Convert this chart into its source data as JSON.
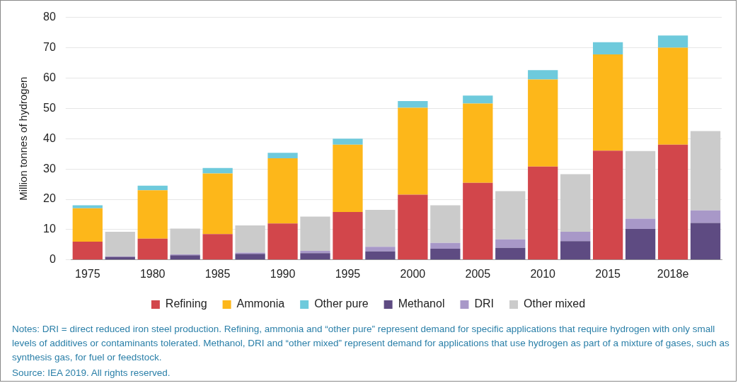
{
  "chart_data": {
    "type": "bar",
    "ylabel": "Million tonnes of hydrogen",
    "categories": [
      "1975",
      null,
      "1980",
      null,
      "1985",
      null,
      "1990",
      null,
      "1995",
      null,
      "2000",
      null,
      "2005",
      null,
      "2010",
      null,
      "2015",
      null,
      "2018e",
      null
    ],
    "stacked": true,
    "ylim": [
      0,
      80
    ],
    "yticks": [
      0,
      10,
      20,
      30,
      40,
      50,
      60,
      70,
      80
    ],
    "grid": "y",
    "legend": "bottom",
    "series": [
      {
        "name": "Refining",
        "color": "#d2464b",
        "values": [
          6,
          null,
          7,
          null,
          8.5,
          null,
          12,
          null,
          15.8,
          null,
          21.5,
          null,
          25.4,
          null,
          30.8,
          null,
          36,
          null,
          38,
          null
        ]
      },
      {
        "name": "Ammonia",
        "color": "#fdb71a",
        "values": [
          11,
          null,
          16,
          null,
          20,
          null,
          21.5,
          null,
          22.2,
          null,
          28.7,
          null,
          26.2,
          null,
          28.7,
          null,
          31.8,
          null,
          32,
          null
        ]
      },
      {
        "name": "Other pure",
        "color": "#6ecadc",
        "values": [
          1,
          null,
          1.5,
          null,
          1.8,
          null,
          1.8,
          null,
          2,
          null,
          2.2,
          null,
          2.6,
          null,
          3.1,
          null,
          4,
          null,
          4,
          null
        ]
      },
      {
        "name": "Methanol",
        "color": "#5e4b82",
        "values": [
          null,
          1,
          null,
          1.5,
          null,
          2,
          null,
          2.2,
          null,
          2.8,
          null,
          3.7,
          null,
          4,
          null,
          6.2,
          null,
          10.2,
          null,
          12.2
        ]
      },
      {
        "name": "DRI",
        "color": "#a898c8",
        "values": [
          null,
          0.2,
          null,
          0.3,
          null,
          0.4,
          null,
          0.8,
          null,
          1.5,
          null,
          1.9,
          null,
          2.8,
          null,
          3.1,
          null,
          3.4,
          null,
          4.1
        ]
      },
      {
        "name": "Other mixed",
        "color": "#cbcbcb",
        "values": [
          null,
          8.1,
          null,
          8.5,
          null,
          9,
          null,
          11.3,
          null,
          12.2,
          null,
          12.4,
          null,
          15.9,
          null,
          19,
          null,
          22.3,
          null,
          26.2
        ]
      }
    ],
    "annotations": [
      "Notes: DRI = direct reduced iron steel production. Refining, ammonia and “other pure” represent demand for specific applications that require hydrogen with only small levels of additives or contaminants tolerated. Methanol, DRI and “other mixed” represent demand for applications that use hydrogen as part of a mixture of gases, such as synthesis gas, for fuel or feedstock.",
      "Source: IEA 2019. All rights reserved."
    ]
  }
}
